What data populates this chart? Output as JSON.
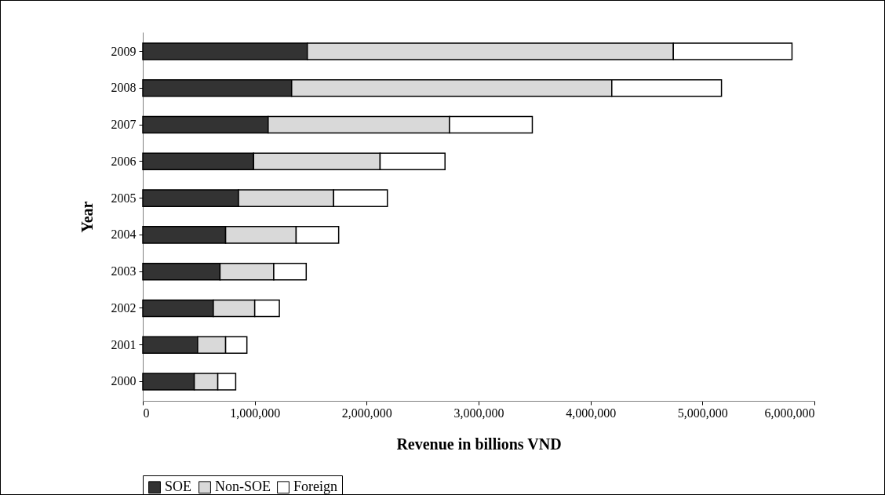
{
  "chart_data": {
    "type": "bar",
    "orientation": "horizontal",
    "stacked": true,
    "xlabel": "Revenue in billions VND",
    "ylabel": "Year",
    "categories": [
      "2009",
      "2008",
      "2007",
      "2006",
      "2005",
      "2004",
      "2003",
      "2002",
      "2001",
      "2000"
    ],
    "series": [
      {
        "name": "SOE",
        "color": "#333333",
        "values": [
          1470000,
          1330000,
          1120000,
          990000,
          855000,
          740000,
          690000,
          630000,
          490000,
          460000
        ]
      },
      {
        "name": "Non-SOE",
        "color": "#d9d9d9",
        "values": [
          3270000,
          2860000,
          1620000,
          1130000,
          850000,
          630000,
          480000,
          370000,
          250000,
          210000
        ]
      },
      {
        "name": "Foreign",
        "color": "#ffffff",
        "values": [
          1060000,
          980000,
          740000,
          580000,
          480000,
          380000,
          290000,
          220000,
          190000,
          160000
        ]
      }
    ],
    "xlim": [
      0,
      6000000
    ],
    "xticks": [
      0,
      {
        "value": 1000000,
        "label": "1,000,000"
      },
      {
        "value": 2000000,
        "label": "2,000,000"
      },
      {
        "value": 3000000,
        "label": "3,000,000"
      },
      {
        "value": 4000000,
        "label": "4,000,000"
      },
      {
        "value": 5000000,
        "label": "5,000,000"
      },
      {
        "value": 6000000,
        "label": "6,000,000"
      }
    ],
    "grid": false,
    "legend": "bottom"
  }
}
